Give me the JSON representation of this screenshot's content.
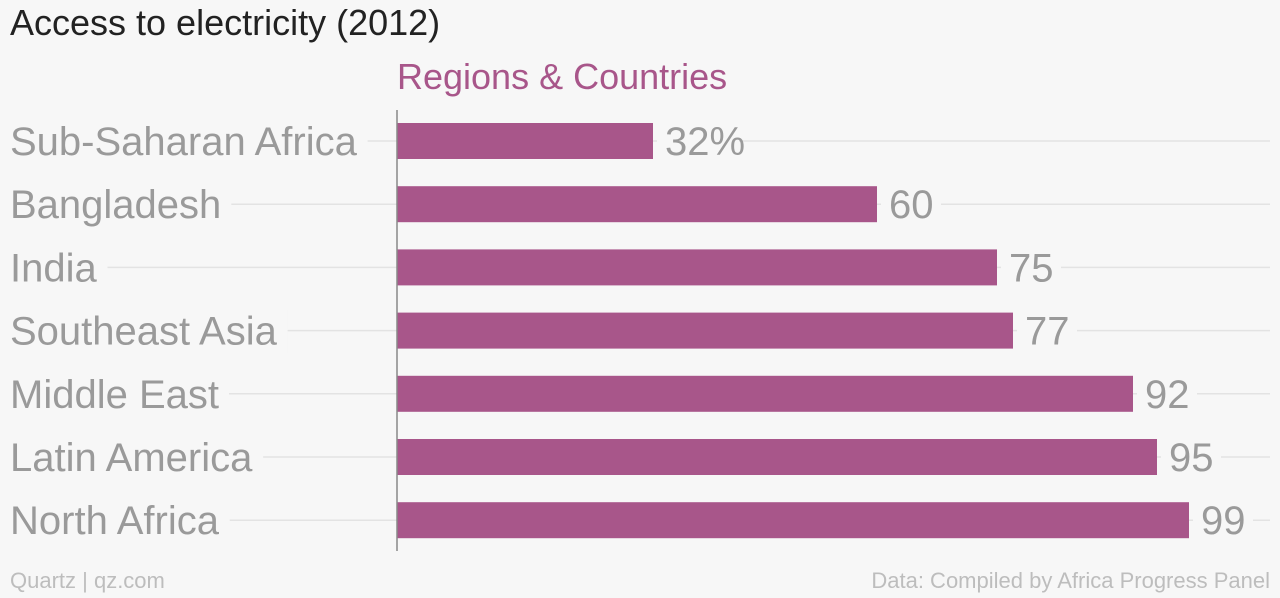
{
  "chart_data": {
    "type": "bar",
    "orientation": "horizontal",
    "title": "Access to electricity (2012)",
    "subtitle": "Regions & Countries",
    "categories": [
      "Sub-Saharan Africa",
      "Bangladesh",
      "India",
      "Southeast Asia",
      "Middle East",
      "Latin America",
      "North Africa"
    ],
    "values": [
      32,
      60,
      75,
      77,
      92,
      95,
      99
    ],
    "data_labels": [
      "32%",
      "60",
      "75",
      "77",
      "92",
      "95",
      "99"
    ],
    "xlim": [
      0,
      100
    ],
    "grid": true,
    "bar_color": "#a8568a"
  },
  "footer": {
    "left": "Quartz | qz.com",
    "right": "Data: Compiled by Africa Progress Panel"
  }
}
